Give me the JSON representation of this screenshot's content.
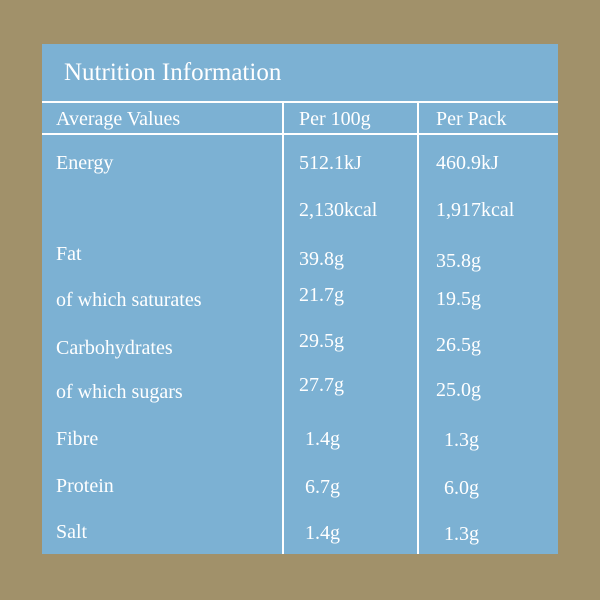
{
  "title": "Nutrition Information",
  "table": {
    "headers": [
      "Average Values",
      "Per 100g",
      "Per Pack"
    ],
    "rows": [
      {
        "label": "Energy",
        "per100g": "512.1kJ",
        "perPack": "460.9kJ"
      },
      {
        "label": "",
        "per100g": "2,130kcal",
        "perPack": "1,917kcal"
      },
      {
        "label": "Fat",
        "per100g": "39.8g",
        "perPack": "35.8g"
      },
      {
        "label": "of which saturates",
        "per100g": "21.7g",
        "perPack": "19.5g"
      },
      {
        "label": "Carbohydrates",
        "per100g": "29.5g",
        "perPack": "26.5g"
      },
      {
        "label": "of which sugars",
        "per100g": "27.7g",
        "perPack": "25.0g"
      },
      {
        "label": "Fibre",
        "per100g": "1.4g",
        "perPack": "1.3g"
      },
      {
        "label": "Protein",
        "per100g": "6.7g",
        "perPack": "6.0g"
      },
      {
        "label": "Salt",
        "per100g": "1.4g",
        "perPack": "1.3g"
      }
    ]
  },
  "colors": {
    "background": "#a1916a",
    "panel": "#7cb1d3",
    "text": "#ffffff"
  }
}
